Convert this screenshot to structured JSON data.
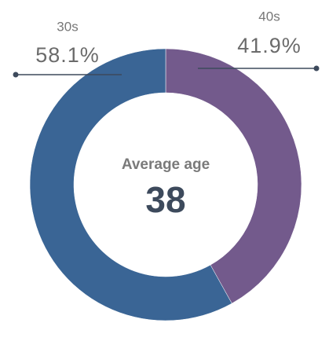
{
  "chart_data": {
    "type": "pie",
    "categories": [
      "40s",
      "30s"
    ],
    "values": [
      41.9,
      58.1
    ],
    "value_labels": [
      "41.9%",
      "58.1%"
    ],
    "colors": [
      "#735a8c",
      "#3a6595"
    ],
    "center_title": "Average age",
    "center_value": 38
  }
}
